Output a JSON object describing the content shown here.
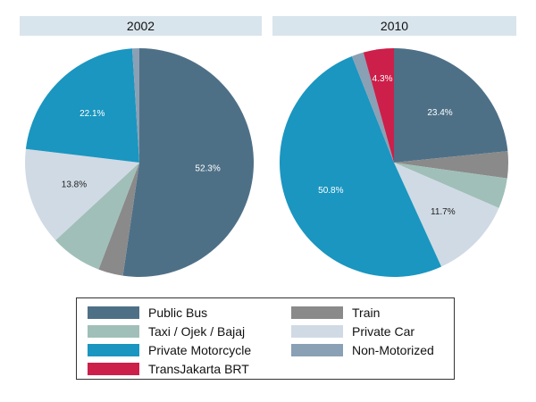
{
  "chart_data": [
    {
      "type": "pie",
      "title": "2002",
      "slices": [
        {
          "label": "Public Bus",
          "value": 52.3,
          "value_label": "52.3%"
        },
        {
          "label": "Train",
          "value": 3.5,
          "value_label": ""
        },
        {
          "label": "Taxi / Ojek / Bajaj",
          "value": 7.3,
          "value_label": ""
        },
        {
          "label": "Private Car",
          "value": 13.8,
          "value_label": "13.8%"
        },
        {
          "label": "Private Motorcycle",
          "value": 22.1,
          "value_label": "22.1%"
        },
        {
          "label": "Non-Motorized",
          "value": 1.0,
          "value_label": ""
        }
      ]
    },
    {
      "type": "pie",
      "title": "2010",
      "slices": [
        {
          "label": "Public Bus",
          "value": 23.4,
          "value_label": "23.4%"
        },
        {
          "label": "Train",
          "value": 3.8,
          "value_label": ""
        },
        {
          "label": "Taxi / Ojek / Bajaj",
          "value": 4.3,
          "value_label": ""
        },
        {
          "label": "Private Car",
          "value": 11.7,
          "value_label": "11.7%"
        },
        {
          "label": "Private Motorcycle",
          "value": 50.8,
          "value_label": "50.8%"
        },
        {
          "label": "Non-Motorized",
          "value": 1.7,
          "value_label": ""
        },
        {
          "label": "TransJakarta BRT",
          "value": 4.3,
          "value_label": "4.3%"
        }
      ]
    }
  ],
  "legend": [
    {
      "label": "Public Bus",
      "color": "#4e7087"
    },
    {
      "label": "Train",
      "color": "#8a8a8a"
    },
    {
      "label": "Taxi / Ojek / Bajaj",
      "color": "#a0bfb8"
    },
    {
      "label": "Private Car",
      "color": "#d0dae4"
    },
    {
      "label": "Private Motorcycle",
      "color": "#1a96c0"
    },
    {
      "label": "Non-Motorized",
      "color": "#8aa0b4"
    },
    {
      "label": "TransJakarta BRT",
      "color": "#cc1f4a"
    }
  ]
}
